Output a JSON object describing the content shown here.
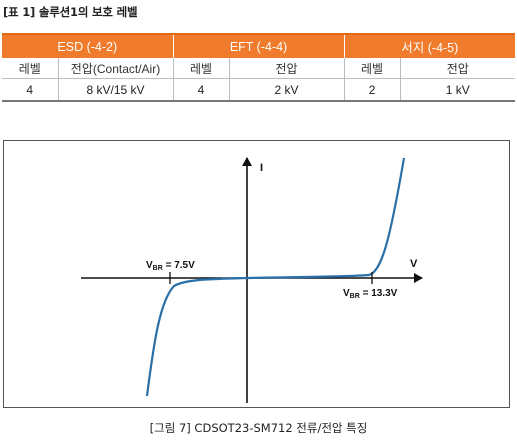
{
  "table_caption": "[표 1] 솔루션1의 보호 레벨",
  "table": {
    "groups": [
      "ESD (-4-2)",
      "EFT (-4-4)",
      "서지 (-4-5)"
    ],
    "subheaders": [
      "레벨",
      "전압(Contact/Air)",
      "레벨",
      "전압",
      "레벨",
      "전압"
    ],
    "row": [
      "4",
      "8 kV/15 kV",
      "4",
      "2 kV",
      "2",
      "1 kV"
    ]
  },
  "figure": {
    "caption": "[그림 7] CDSOT23-SM712 전류/전압 특징",
    "axis_i": "I",
    "axis_v": "V",
    "vbr_neg": {
      "prefix": "V",
      "sub": "BR",
      "text": " = 7.5V"
    },
    "vbr_pos": {
      "prefix": "V",
      "sub": "BR",
      "text": " = 13.3V"
    },
    "curve_color": "#2a6fa6"
  },
  "chart_data": {
    "type": "line",
    "xlabel": "V",
    "ylabel": "I",
    "series": [
      {
        "values": [
          [
            -7.5,
            0
          ],
          [
            13.3,
            0
          ]
        ]
      }
    ],
    "annotations": [
      "VBR = 7.5V",
      "VBR = 13.3V"
    ]
  }
}
